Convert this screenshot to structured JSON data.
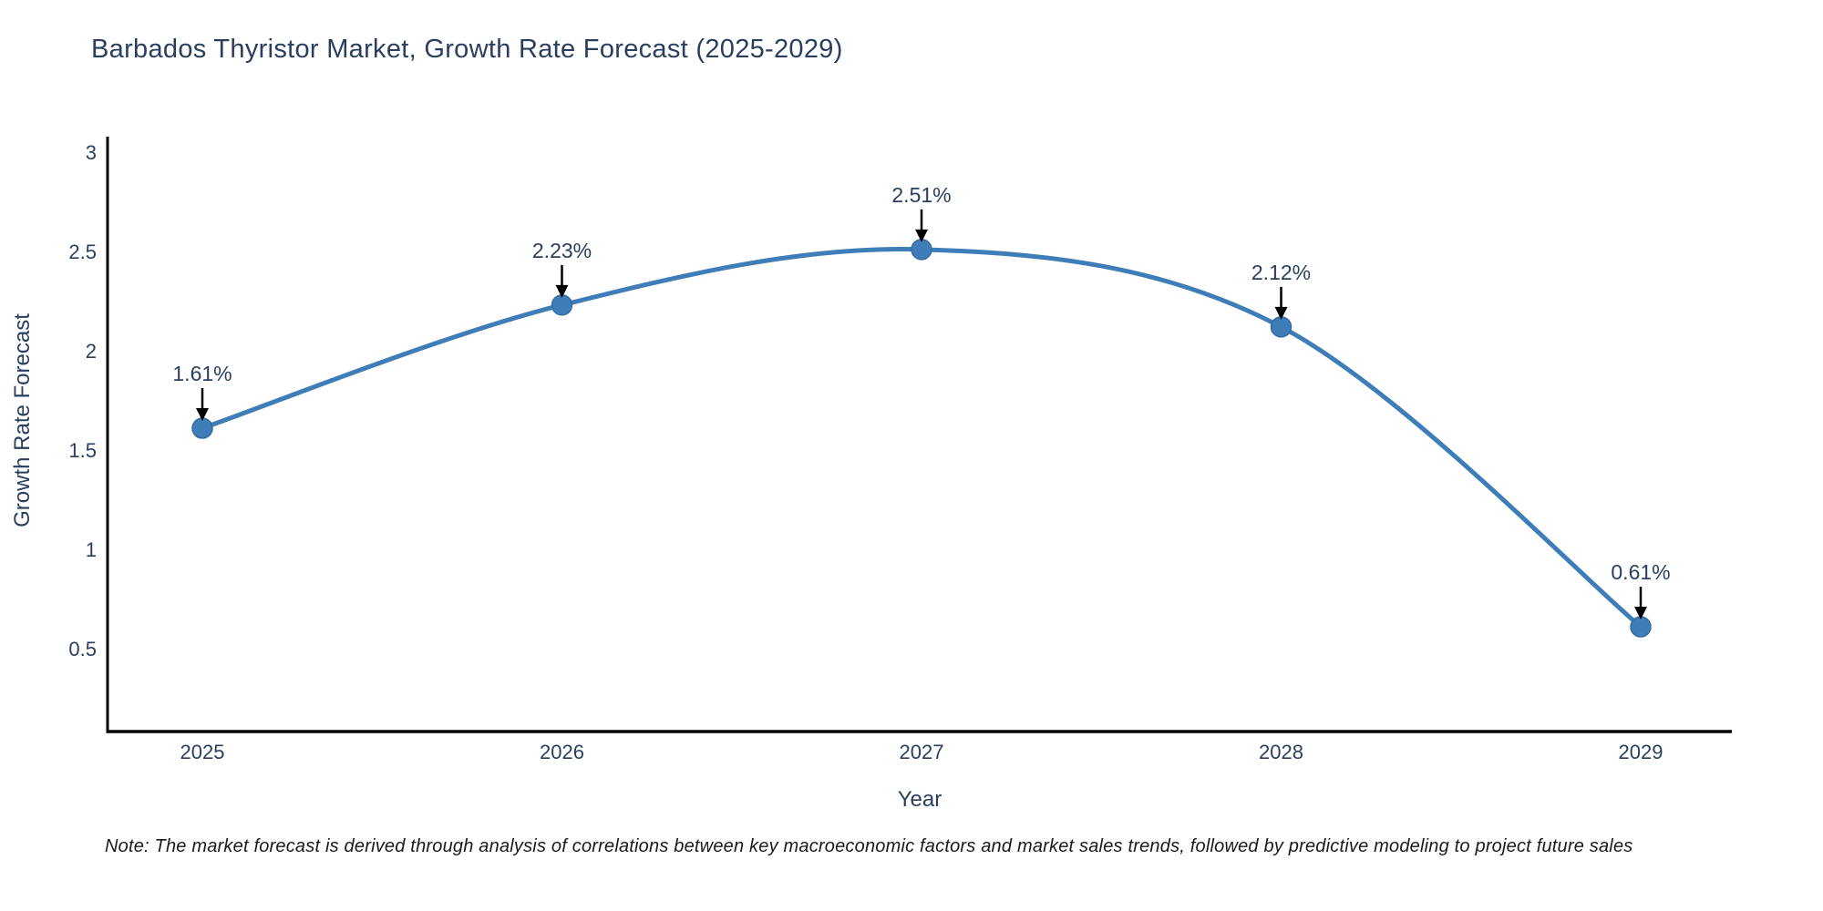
{
  "title": "Barbados Thyristor Market, Growth Rate Forecast (2025-2029)",
  "note": "Note: The market forecast is derived through analysis of correlations between key macroeconomic factors and market sales trends, followed by predictive modeling to project future sales",
  "chart_data": {
    "type": "line",
    "title": "Barbados Thyristor Market, Growth Rate Forecast (2025-2029)",
    "x": [
      "2025",
      "2026",
      "2027",
      "2028",
      "2029"
    ],
    "values": [
      1.61,
      2.23,
      2.51,
      2.12,
      0.61
    ],
    "point_labels": [
      "1.61%",
      "2.23%",
      "2.51%",
      "2.12%",
      "0.61%"
    ],
    "xlabel": "Year",
    "ylabel": "Growth Rate Forecast",
    "yticks": [
      "0.5",
      "1",
      "1.5",
      "2",
      "2.5",
      "3"
    ],
    "ytick_values": [
      0.5,
      1,
      1.5,
      2,
      2.5,
      3
    ],
    "ylim": [
      0.09,
      3.05
    ],
    "grid": false,
    "legend": "none",
    "line_style": "spline",
    "marker": "circle",
    "colors": {
      "line": "#3e7db7",
      "marker_fill": "#3e7db7",
      "marker_edge": "#336da3",
      "axis": "#000000",
      "tick_label": "#2a3f5f",
      "title": "#2a3f5f",
      "axis_label": "#2a3f5f",
      "annotation_text": "#2a3f5f",
      "annotation_arrow": "#000000",
      "note_text": "#1a1a1a",
      "background": "#ffffff"
    }
  }
}
